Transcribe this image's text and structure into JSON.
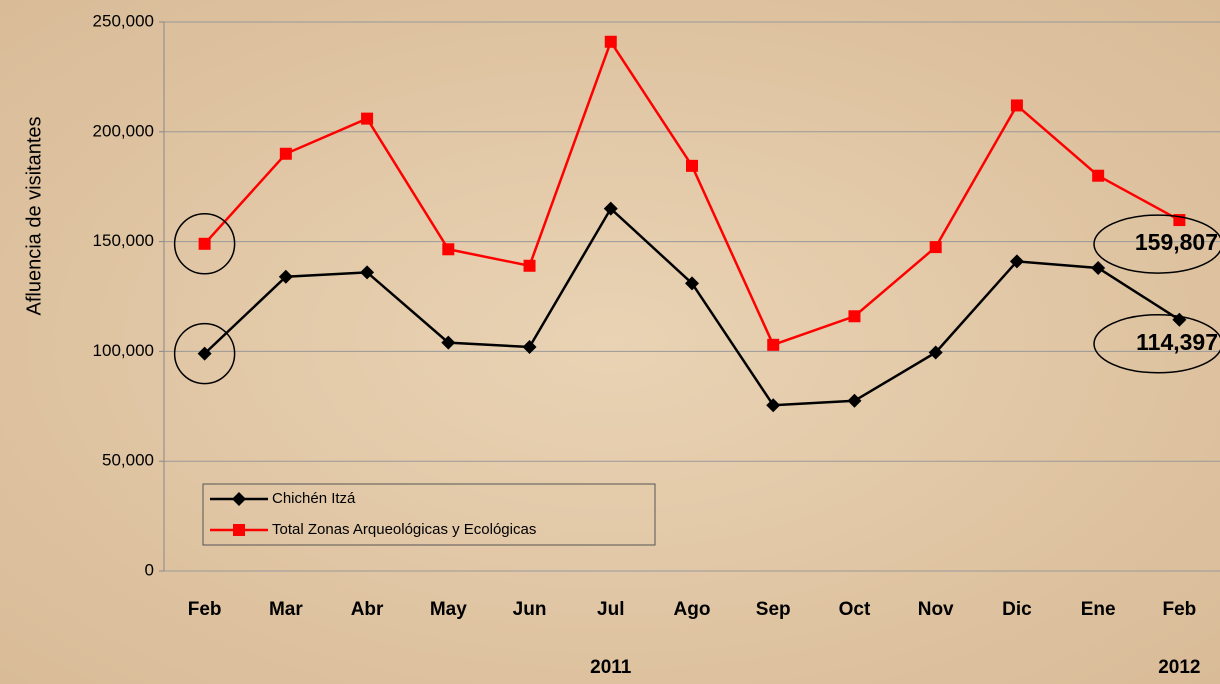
{
  "chart_data": {
    "type": "line",
    "y_label": "Afluencia de visitantes",
    "categories": [
      "Feb",
      "Mar",
      "Abr",
      "May",
      "Jun",
      "Jul",
      "Ago",
      "Sep",
      "Oct",
      "Nov",
      "Dic",
      "Ene",
      "Feb"
    ],
    "year_labels": [
      "2011",
      "2012"
    ],
    "series": [
      {
        "name": "Chichén Itzá",
        "color": "#000000",
        "marker": "diamond",
        "values": [
          99000,
          134000,
          136000,
          104000,
          102000,
          165000,
          131000,
          75500,
          77500,
          99500,
          141000,
          138000,
          114397
        ],
        "value_labels": [
          null,
          null,
          null,
          null,
          null,
          null,
          null,
          null,
          null,
          null,
          null,
          null,
          "114,397"
        ]
      },
      {
        "name": "Total Zonas Arqueológicas y Ecológicas",
        "color": "#ff0000",
        "marker": "square",
        "values": [
          149000,
          190000,
          206000,
          146500,
          139000,
          241000,
          184500,
          103000,
          116000,
          147500,
          212000,
          180000,
          159807
        ],
        "value_labels": [
          null,
          null,
          null,
          null,
          null,
          null,
          null,
          null,
          null,
          null,
          null,
          null,
          "159,807"
        ]
      }
    ],
    "ylim": [
      0,
      250000
    ],
    "yticks": [
      0,
      {
        "value": 50000,
        "label": "50,000"
      },
      {
        "value": 100000,
        "label": "100,000"
      },
      {
        "value": 150000,
        "label": "150,000"
      },
      {
        "value": 200000,
        "label": "200,000"
      },
      {
        "value": 250000,
        "label": "250,000"
      }
    ],
    "grid": true,
    "legend": "lower left"
  }
}
